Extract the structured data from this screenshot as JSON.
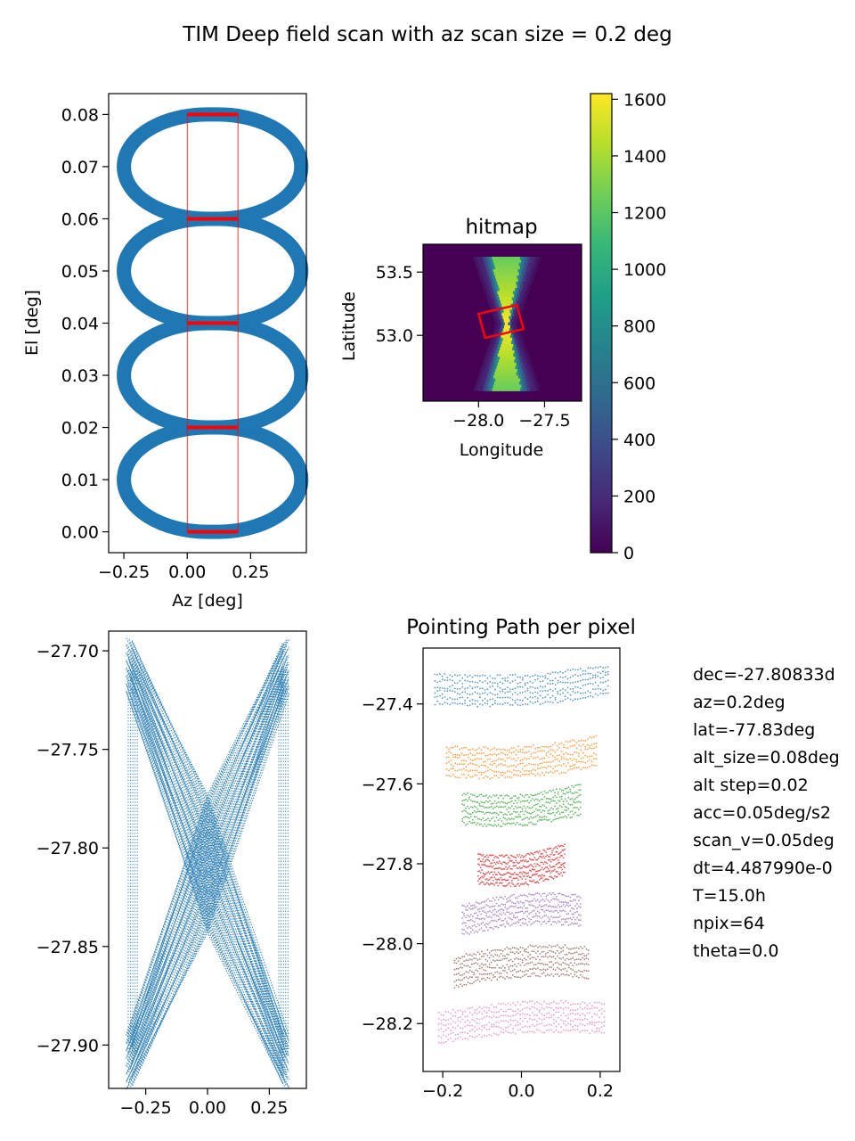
{
  "figure_title": "TIM Deep field scan with az scan size = 0.2 deg",
  "colors": {
    "scan_blue": "#1f77b4",
    "outline_red": "#ff0000",
    "viridis": [
      "#440154",
      "#482878",
      "#3e4989",
      "#31688e",
      "#26828e",
      "#1f9e89",
      "#35b779",
      "#6ece58",
      "#b5de2b",
      "#fde725"
    ],
    "tab10": [
      "#1f77b4",
      "#ff7f0e",
      "#2ca02c",
      "#d62728",
      "#9467bd",
      "#8c564b",
      "#e377c2"
    ]
  },
  "info_lines": [
    "dec=-27.80833d",
    "az=0.2deg",
    "lat=-77.83deg",
    "alt_size=0.08deg",
    "alt step=0.02",
    "acc=0.05deg/s2",
    "scan_v=0.05deg",
    "dt=4.487990e-0",
    "T=15.0h",
    "npix=64",
    "theta=0.0"
  ],
  "chart_data": [
    {
      "id": "azel",
      "type": "scatter",
      "title": "",
      "xlabel": "Az [deg]",
      "ylabel": "El [deg]",
      "xlim": [
        -0.31,
        0.47
      ],
      "ylim": [
        -0.004,
        0.084
      ],
      "xticks": [
        -0.25,
        0,
        0.25
      ],
      "xtick_labels": [
        "−0.25",
        "0.00",
        "0.25"
      ],
      "yticks": [
        0,
        0.01,
        0.02,
        0.03,
        0.04,
        0.05,
        0.06,
        0.07,
        0.08
      ],
      "ytick_labels": [
        "0.00",
        "0.01",
        "0.02",
        "0.03",
        "0.04",
        "0.05",
        "0.06",
        "0.07",
        "0.08"
      ],
      "loops": [
        {
          "el_center": 0.01,
          "x_range": [
            -0.25,
            0.45
          ],
          "half_height": 0.01
        },
        {
          "el_center": 0.03,
          "x_range": [
            -0.25,
            0.45
          ],
          "half_height": 0.01
        },
        {
          "el_center": 0.05,
          "x_range": [
            -0.25,
            0.45
          ],
          "half_height": 0.01
        },
        {
          "el_center": 0.07,
          "x_range": [
            -0.25,
            0.45
          ],
          "half_height": 0.01
        }
      ],
      "scan_region": {
        "x": [
          0,
          0.2
        ],
        "y": [
          0,
          0.08
        ]
      },
      "step_lines_el": [
        0,
        0.02,
        0.04,
        0.06,
        0.08
      ]
    },
    {
      "id": "hitmap",
      "type": "heatmap",
      "title": "hitmap",
      "xlabel": "Longitude",
      "ylabel": "Latitude",
      "xlim": [
        -28.42,
        -27.22
      ],
      "ylim": [
        52.48,
        53.72
      ],
      "xticks": [
        -28.0,
        -27.5
      ],
      "xtick_labels": [
        "−28.0",
        "−27.5"
      ],
      "yticks": [
        53.0,
        53.5
      ],
      "ytick_labels": [
        "53.0",
        "53.5"
      ],
      "center": [
        -27.8,
        53.1
      ],
      "peak": 1600,
      "footprint_corners": [
        [
          -28.0,
          53.17
        ],
        [
          -27.71,
          53.24
        ],
        [
          -27.66,
          53.05
        ],
        [
          -27.95,
          52.98
        ]
      ],
      "colorbar": {
        "range": [
          0,
          1620
        ],
        "ticks": [
          0,
          200,
          400,
          600,
          800,
          1000,
          1200,
          1400,
          1600
        ],
        "tick_labels": [
          "0",
          "200",
          "400",
          "600",
          "800",
          "1000",
          "1200",
          "1400",
          "1600"
        ]
      }
    },
    {
      "id": "radec",
      "type": "scatter",
      "title": "",
      "xlabel": "",
      "ylabel": "",
      "xlim": [
        -0.4,
        0.4
      ],
      "ylim": [
        -27.922,
        -27.69
      ],
      "xticks": [
        -0.25,
        0,
        0.25
      ],
      "xtick_labels": [
        "−0.25",
        "0.00",
        "0.25"
      ],
      "yticks": [
        -27.9,
        -27.85,
        -27.8,
        -27.75,
        -27.7
      ],
      "ytick_labels": [
        "−27.90",
        "−27.85",
        "−27.80",
        "−27.75",
        "−27.70"
      ],
      "x_extent": [
        -0.33,
        0.33
      ],
      "y_extent": [
        -27.91,
        -27.705
      ],
      "waist_y": -27.808
    },
    {
      "id": "pointing",
      "type": "scatter",
      "title": "Pointing Path per pixel",
      "xlabel": "",
      "ylabel": "",
      "xlim": [
        -0.25,
        0.25
      ],
      "ylim": [
        -28.32,
        -27.26
      ],
      "xticks": [
        -0.2,
        0,
        0.2
      ],
      "xtick_labels": [
        "−0.2",
        "0.0",
        "0.2"
      ],
      "yticks": [
        -28.2,
        -28.0,
        -27.8,
        -27.6,
        -27.4
      ],
      "ytick_labels": [
        "−28.2",
        "−28.0",
        "−27.8",
        "−27.6",
        "−27.4"
      ],
      "series": [
        {
          "center_y": -27.35,
          "half_width": 0.22,
          "color_index": 0
        },
        {
          "center_y": -27.53,
          "half_width": 0.19,
          "color_index": 1
        },
        {
          "center_y": -27.65,
          "half_width": 0.15,
          "color_index": 2
        },
        {
          "center_y": -27.8,
          "half_width": 0.11,
          "color_index": 3
        },
        {
          "center_y": -27.93,
          "half_width": 0.15,
          "color_index": 4
        },
        {
          "center_y": -28.06,
          "half_width": 0.17,
          "color_index": 5
        },
        {
          "center_y": -28.2,
          "half_width": 0.21,
          "color_index": 6
        }
      ]
    }
  ]
}
